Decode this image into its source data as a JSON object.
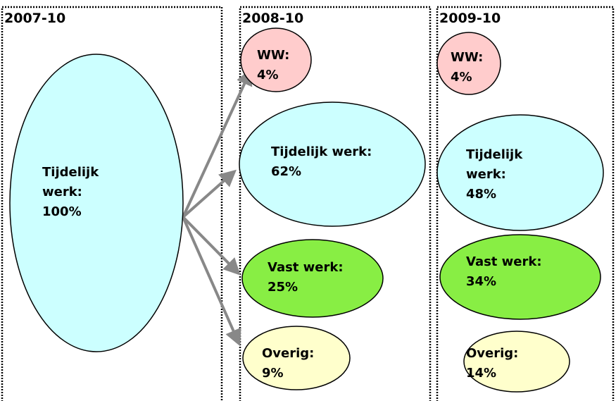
{
  "columns": [
    {
      "header": "2007-10",
      "nodes": [
        {
          "lines": [
            "Tijdelijk",
            "werk:",
            "100%"
          ]
        }
      ]
    },
    {
      "header": "2008-10",
      "nodes": [
        {
          "lines": [
            "WW:",
            "4%"
          ]
        },
        {
          "lines": [
            "Tijdelijk werk:",
            "62%"
          ]
        },
        {
          "lines": [
            "Vast werk:",
            "25%"
          ]
        },
        {
          "lines": [
            "Overig:",
            "9%"
          ]
        }
      ]
    },
    {
      "header": "2009-10",
      "nodes": [
        {
          "lines": [
            "WW:",
            "4%"
          ]
        },
        {
          "lines": [
            "Tijdelijk",
            "werk:",
            "48%"
          ]
        },
        {
          "lines": [
            "Vast werk:",
            "34%"
          ]
        },
        {
          "lines": [
            "Overig:",
            "14%"
          ]
        }
      ]
    }
  ]
}
